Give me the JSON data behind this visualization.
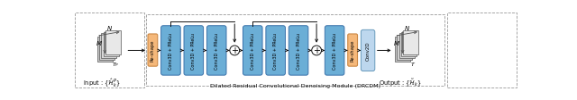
{
  "bg_color": "#ffffff",
  "reshape_color": "#F5B87A",
  "reshape_edge": "#cc8844",
  "conv3d_color": "#6BAED6",
  "conv3d_edge": "#3a72aa",
  "conv2d_color": "#BDD7EE",
  "conv2d_edge": "#6699bb",
  "input_label": "Input : $\\{\\hat{\\mathcal{H}}_k^P\\}$",
  "output_label": "Output : $\\{\\tilde{\\mathcal{H}}_k\\}$",
  "module_label": "Dilated Residual Convolutional Denoising Module (DRCDM)",
  "reshape_label": "Re-shape",
  "conv2d_label": "Conv2D",
  "conv3d_label": "Conv3D + PReLu",
  "tensor_face_colors": [
    "#c8c8c8",
    "#d0d0d0",
    "#d8d8d8",
    "#e0e0e0",
    "#e8e8e8"
  ],
  "tensor_edge_color": "#555555",
  "arrow_color": "#111111",
  "dashed_color": "#999999",
  "skip_line_color": "#111111",
  "plus_bg": "#ffffff",
  "plus_edge": "#111111"
}
